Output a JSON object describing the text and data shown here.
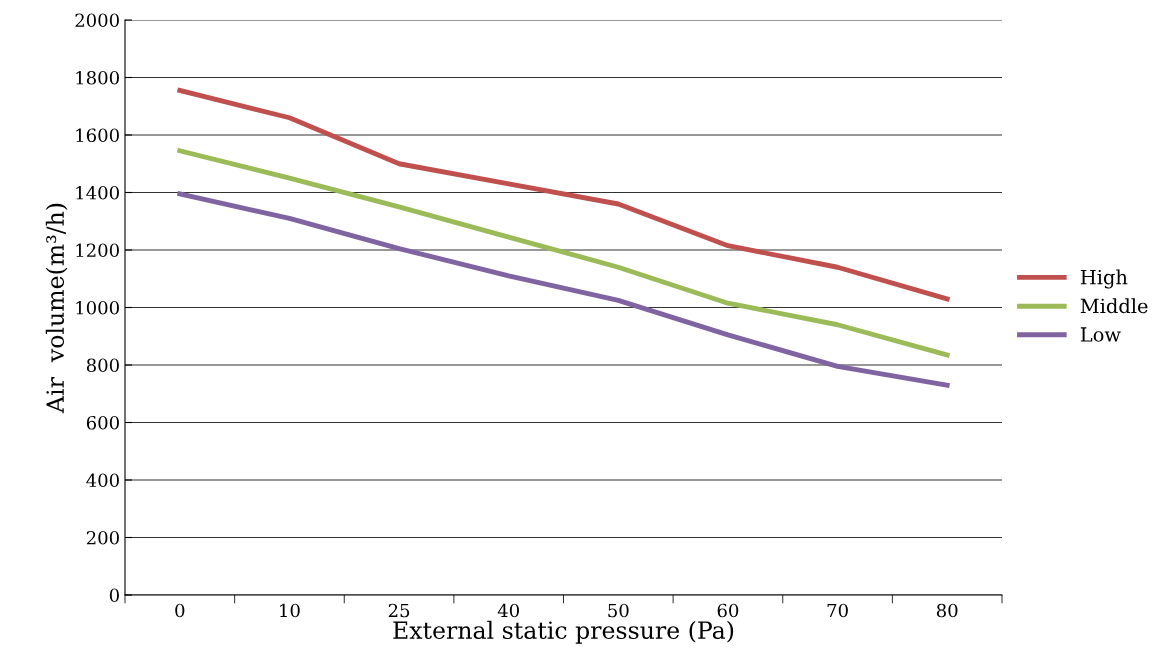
{
  "chart_data": {
    "type": "line",
    "xlabel": "External static pressure (Pa)",
    "ylabel": "Air  volume(m³/h)",
    "categories": [
      "0",
      "10",
      "25",
      "40",
      "50",
      "60",
      "70",
      "80"
    ],
    "series": [
      {
        "name": "High",
        "color": "#c0504d",
        "values": [
          1755,
          1660,
          1500,
          1430,
          1360,
          1215,
          1140,
          1030
        ]
      },
      {
        "name": "Middle",
        "color": "#9bbb59",
        "values": [
          1545,
          1450,
          1350,
          1245,
          1140,
          1015,
          940,
          835
        ]
      },
      {
        "name": "Low",
        "color": "#8064a2",
        "values": [
          1395,
          1310,
          1205,
          1110,
          1025,
          905,
          795,
          730
        ]
      }
    ],
    "ylim": [
      0,
      2000
    ],
    "yticks": [
      0,
      200,
      400,
      600,
      800,
      1000,
      1200,
      1400,
      1600,
      1800,
      2000
    ],
    "grid": "y",
    "legend": "right",
    "marker": "none",
    "line_style": "solid"
  }
}
